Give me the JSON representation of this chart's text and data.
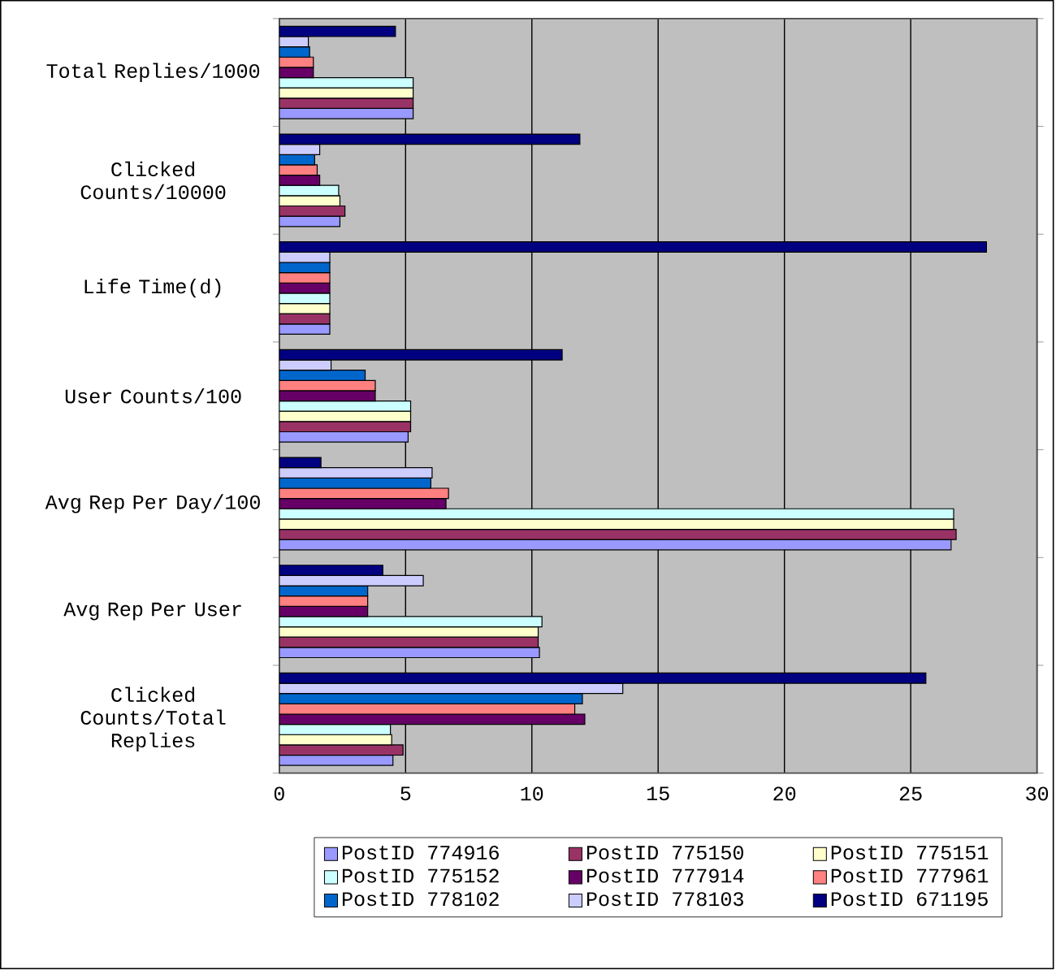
{
  "chart_data": {
    "type": "bar",
    "orientation": "horizontal",
    "categories": [
      "Total Replies/1000",
      "Clicked Counts/10000",
      "Life Time(d)",
      "User Counts/100",
      "Avg Rep Per Day/100",
      "Avg Rep Per User",
      "Clicked Counts/Total Replies"
    ],
    "series": [
      {
        "name": "PostID 774916",
        "color": "#9999ff",
        "values": [
          5.3,
          2.4,
          2,
          5.1,
          26.6,
          10.3,
          4.5
        ]
      },
      {
        "name": "PostID 775150",
        "color": "#993366",
        "values": [
          5.3,
          2.6,
          2,
          5.2,
          26.8,
          10.25,
          4.9
        ]
      },
      {
        "name": "PostID 775151",
        "color": "#ffffcc",
        "values": [
          5.3,
          2.4,
          2,
          5.2,
          26.7,
          10.25,
          4.45
        ]
      },
      {
        "name": "PostID 775152",
        "color": "#ccffff",
        "values": [
          5.3,
          2.35,
          2,
          5.2,
          26.7,
          10.4,
          4.4
        ]
      },
      {
        "name": "PostID 777914",
        "color": "#660066",
        "values": [
          1.35,
          1.6,
          2,
          3.8,
          6.6,
          3.5,
          12.1
        ]
      },
      {
        "name": "PostID 777961",
        "color": "#ff8080",
        "values": [
          1.35,
          1.5,
          2,
          3.8,
          6.7,
          3.5,
          11.7
        ]
      },
      {
        "name": "PostID 778102",
        "color": "#0066cc",
        "values": [
          1.2,
          1.4,
          2,
          3.4,
          6.0,
          3.5,
          12.0
        ]
      },
      {
        "name": "PostID 778103",
        "color": "#ccccff",
        "values": [
          1.15,
          1.6,
          2,
          2.05,
          6.05,
          5.7,
          13.6
        ]
      },
      {
        "name": "PostID 671195",
        "color": "#000080",
        "values": [
          4.6,
          11.9,
          28,
          11.2,
          1.65,
          4.1,
          25.6
        ]
      }
    ],
    "xlim": [
      0,
      30
    ],
    "xticks": [
      0,
      5,
      10,
      15,
      20,
      25,
      30
    ],
    "grid": "x",
    "legend": "bottom"
  }
}
